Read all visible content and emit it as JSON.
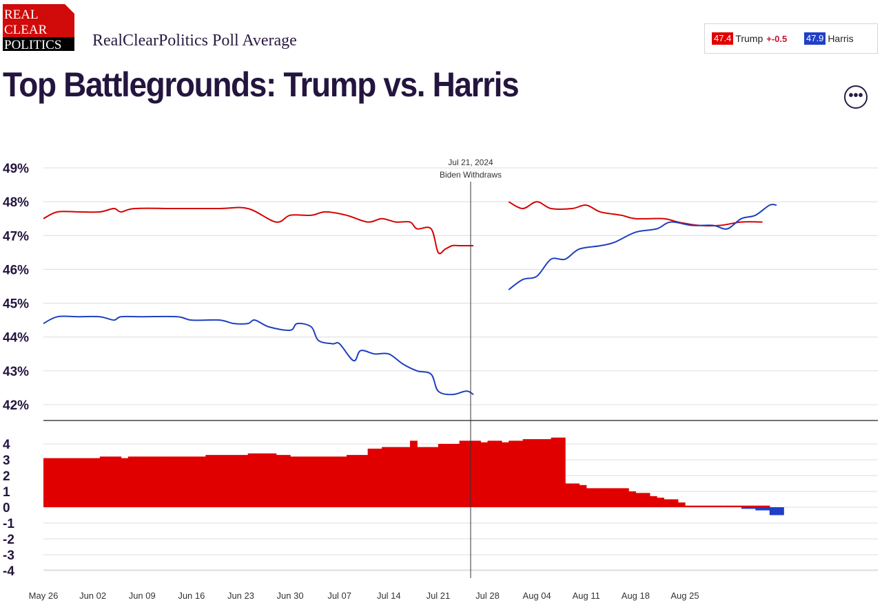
{
  "logo": {
    "line1": "REAL",
    "line2": "CLEAR",
    "line3": "POLITICS"
  },
  "header": {
    "subtitle": "RealClearPolitics Poll Average",
    "title": "Top Battlegrounds: Trump vs. Harris",
    "more_label": "•••"
  },
  "legend": {
    "trump": {
      "value": "47.4",
      "label": "Trump",
      "spread": "+-0.5",
      "color": "#e00000"
    },
    "harris": {
      "value": "47.9",
      "label": "Harris",
      "color": "#1f3fc8"
    }
  },
  "annotation": {
    "date": "Jul 21, 2024",
    "label": "Biden Withdraws"
  },
  "chart_data": [
    {
      "type": "line",
      "x_start": "2024-05-26",
      "x_end": "2024-09-07",
      "x_tick_labels": [
        "May 26",
        "Jun 02",
        "Jun 09",
        "Jun 16",
        "Jun 23",
        "Jun 30",
        "Jul 07",
        "Jul 14",
        "Jul 21",
        "Jul 28",
        "Aug 04",
        "Aug 11",
        "Aug 18",
        "Aug 25"
      ],
      "x_tick_dates": [
        "2024-05-26",
        "2024-06-02",
        "2024-06-09",
        "2024-06-16",
        "2024-06-23",
        "2024-06-30",
        "2024-07-07",
        "2024-07-14",
        "2024-07-21",
        "2024-07-28",
        "2024-08-04",
        "2024-08-11",
        "2024-08-18",
        "2024-08-25"
      ],
      "ylim": [
        41.5,
        49
      ],
      "y_ticks": [
        42,
        43,
        44,
        45,
        46,
        47,
        48,
        49
      ],
      "y_tick_labels": [
        "42%",
        "43%",
        "44%",
        "45%",
        "46%",
        "47%",
        "48%",
        "49%"
      ],
      "grid": true,
      "series": [
        {
          "name": "Trump",
          "color": "#d50000",
          "segments": [
            [
              [
                "2024-05-26",
                47.5
              ],
              [
                "2024-05-28",
                47.7
              ],
              [
                "2024-05-31",
                47.7
              ],
              [
                "2024-06-03",
                47.7
              ],
              [
                "2024-06-05",
                47.8
              ],
              [
                "2024-06-06",
                47.7
              ],
              [
                "2024-06-08",
                47.8
              ],
              [
                "2024-06-14",
                47.8
              ],
              [
                "2024-06-20",
                47.8
              ],
              [
                "2024-06-24",
                47.8
              ],
              [
                "2024-06-28",
                47.4
              ],
              [
                "2024-06-30",
                47.6
              ],
              [
                "2024-07-03",
                47.6
              ],
              [
                "2024-07-05",
                47.7
              ],
              [
                "2024-07-08",
                47.6
              ],
              [
                "2024-07-11",
                47.4
              ],
              [
                "2024-07-13",
                47.5
              ],
              [
                "2024-07-15",
                47.4
              ],
              [
                "2024-07-17",
                47.4
              ],
              [
                "2024-07-18",
                47.2
              ],
              [
                "2024-07-20",
                47.2
              ],
              [
                "2024-07-21",
                46.5
              ],
              [
                "2024-07-22",
                46.6
              ],
              [
                "2024-07-23",
                46.7
              ],
              [
                "2024-07-24",
                46.7
              ],
              [
                "2024-07-26",
                46.7
              ]
            ],
            [
              [
                "2024-07-31",
                48.0
              ],
              [
                "2024-08-02",
                47.8
              ],
              [
                "2024-08-04",
                48.0
              ],
              [
                "2024-08-06",
                47.8
              ],
              [
                "2024-08-09",
                47.8
              ],
              [
                "2024-08-11",
                47.9
              ],
              [
                "2024-08-13",
                47.7
              ],
              [
                "2024-08-16",
                47.6
              ],
              [
                "2024-08-18",
                47.5
              ],
              [
                "2024-08-22",
                47.5
              ],
              [
                "2024-08-24",
                47.4
              ],
              [
                "2024-08-27",
                47.3
              ],
              [
                "2024-08-30",
                47.3
              ],
              [
                "2024-09-02",
                47.4
              ],
              [
                "2024-09-05",
                47.4
              ]
            ]
          ]
        },
        {
          "name": "Harris",
          "color": "#1c3fbf",
          "segments": [
            [
              [
                "2024-05-26",
                44.4
              ],
              [
                "2024-05-28",
                44.6
              ],
              [
                "2024-05-31",
                44.6
              ],
              [
                "2024-06-03",
                44.6
              ],
              [
                "2024-06-05",
                44.5
              ],
              [
                "2024-06-06",
                44.6
              ],
              [
                "2024-06-09",
                44.6
              ],
              [
                "2024-06-14",
                44.6
              ],
              [
                "2024-06-16",
                44.5
              ],
              [
                "2024-06-20",
                44.5
              ],
              [
                "2024-06-22",
                44.4
              ],
              [
                "2024-06-24",
                44.4
              ],
              [
                "2024-06-25",
                44.5
              ],
              [
                "2024-06-27",
                44.3
              ],
              [
                "2024-06-30",
                44.2
              ],
              [
                "2024-07-01",
                44.4
              ],
              [
                "2024-07-03",
                44.3
              ],
              [
                "2024-07-04",
                43.9
              ],
              [
                "2024-07-06",
                43.8
              ],
              [
                "2024-07-07",
                43.8
              ],
              [
                "2024-07-09",
                43.3
              ],
              [
                "2024-07-10",
                43.6
              ],
              [
                "2024-07-12",
                43.5
              ],
              [
                "2024-07-14",
                43.5
              ],
              [
                "2024-07-16",
                43.2
              ],
              [
                "2024-07-18",
                43.0
              ],
              [
                "2024-07-20",
                42.9
              ],
              [
                "2024-07-21",
                42.4
              ],
              [
                "2024-07-23",
                42.3
              ],
              [
                "2024-07-25",
                42.4
              ],
              [
                "2024-07-26",
                42.3
              ]
            ],
            [
              [
                "2024-07-31",
                45.4
              ],
              [
                "2024-08-02",
                45.7
              ],
              [
                "2024-08-04",
                45.8
              ],
              [
                "2024-08-06",
                46.3
              ],
              [
                "2024-08-08",
                46.3
              ],
              [
                "2024-08-10",
                46.6
              ],
              [
                "2024-08-13",
                46.7
              ],
              [
                "2024-08-15",
                46.8
              ],
              [
                "2024-08-18",
                47.1
              ],
              [
                "2024-08-21",
                47.2
              ],
              [
                "2024-08-23",
                47.4
              ],
              [
                "2024-08-26",
                47.3
              ],
              [
                "2024-08-29",
                47.3
              ],
              [
                "2024-08-31",
                47.2
              ],
              [
                "2024-09-02",
                47.5
              ],
              [
                "2024-09-04",
                47.6
              ],
              [
                "2024-09-06",
                47.9
              ],
              [
                "2024-09-07",
                47.9
              ]
            ]
          ]
        }
      ]
    },
    {
      "type": "bar",
      "description_series": "Trump spread",
      "ylim": [
        -4.5,
        5.2
      ],
      "y_ticks": [
        4,
        3,
        2,
        1,
        0,
        -1,
        -2,
        -3,
        -4
      ],
      "y_tick_labels": [
        "4",
        "3",
        "2",
        "1",
        "0",
        "-1",
        "-2",
        "-3",
        "-4"
      ],
      "positive_color": "#e00000",
      "negative_color": "#1f3fc8",
      "segments": [
        {
          "start": "2024-05-26",
          "values": [
            3.1,
            3.1,
            3.1,
            3.1,
            3.1,
            3.1,
            3.1,
            3.1,
            3.2,
            3.2,
            3.2,
            3.1,
            3.2,
            3.2,
            3.2,
            3.2,
            3.2,
            3.2,
            3.2,
            3.2,
            3.2,
            3.2,
            3.2,
            3.3,
            3.3,
            3.3,
            3.3,
            3.3,
            3.3,
            3.4,
            3.4,
            3.4,
            3.4,
            3.3,
            3.3,
            3.2,
            3.2,
            3.2,
            3.2,
            3.2,
            3.2,
            3.2,
            3.2,
            3.3,
            3.3,
            3.3,
            3.7,
            3.7,
            3.8,
            3.8,
            3.8,
            3.8,
            4.2,
            3.8,
            3.8,
            3.8,
            4.0,
            4.0,
            4.0,
            4.2,
            4.2,
            4.2,
            4.1,
            4.2,
            4.2,
            4.1,
            4.2,
            4.2,
            4.3,
            4.3,
            4.3,
            4.3,
            4.4,
            4.4
          ]
        },
        {
          "start": "2024-07-31",
          "values": [
            2.6,
            2.5,
            2.2,
            2.1,
            2.1,
            2.1,
            2.1,
            1.6,
            1.5,
            1.5,
            1.4,
            1.2,
            1.2,
            1.2,
            1.2,
            1.2,
            1.2,
            1.0,
            0.9,
            0.9,
            0.7,
            0.6,
            0.5,
            0.5,
            0.3,
            0.1,
            0.1,
            0.1,
            0.1,
            0.1,
            0.1,
            0.1,
            0.1,
            0.1,
            0.1,
            0.1,
            0.1
          ]
        },
        {
          "start": "2024-09-02",
          "values": [
            -0.1,
            -0.1,
            -0.2,
            -0.2,
            -0.5,
            -0.5
          ]
        }
      ]
    }
  ]
}
